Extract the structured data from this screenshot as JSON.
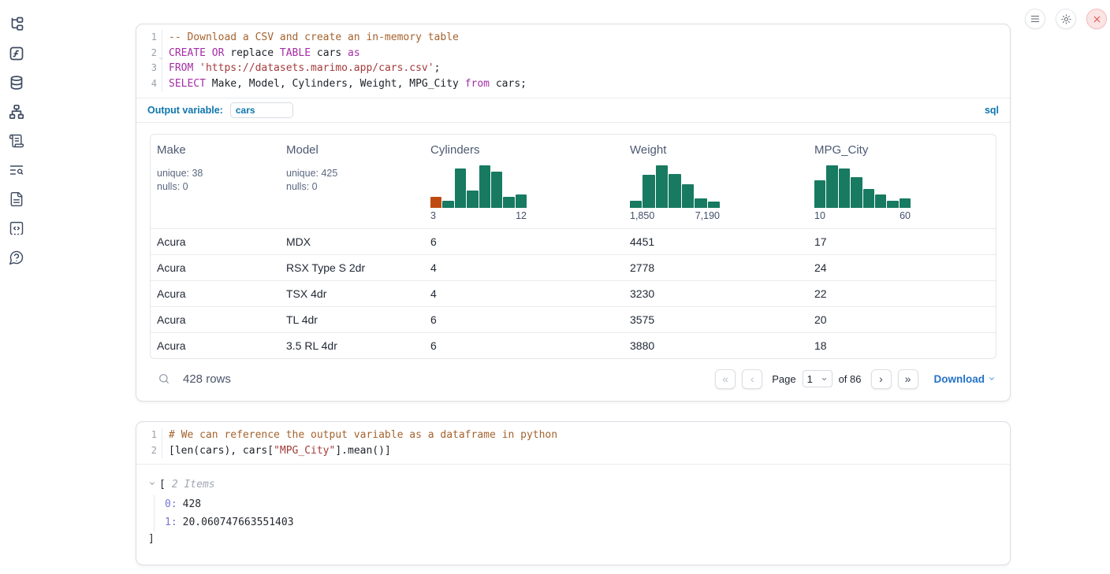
{
  "sidebar": {
    "icons": [
      "file-tree-icon",
      "function-square-icon",
      "database-icon",
      "dependency-graph-icon",
      "scroll-script-icon",
      "text-search-icon",
      "document-icon",
      "snippets-code-icon",
      "help-question-icon"
    ]
  },
  "topbar": {
    "buttons": [
      "menu-icon",
      "settings-gear-icon",
      "shutdown-close-icon"
    ]
  },
  "sql_cell": {
    "line_numbers": [
      "1",
      "2",
      "3",
      "4"
    ],
    "code": [
      [
        [
          "cm",
          "-- Download a CSV and create an in-memory table"
        ]
      ],
      [
        [
          "kw",
          "CREATE OR"
        ],
        [
          "pl",
          " replace "
        ],
        [
          "kw",
          "TABLE"
        ],
        [
          "pl",
          " cars "
        ],
        [
          "kw",
          "as"
        ]
      ],
      [
        [
          "kw",
          "FROM"
        ],
        [
          "pl",
          " "
        ],
        [
          "str",
          "'https://datasets.marimo.app/cars.csv'"
        ],
        [
          "pl",
          ";"
        ]
      ],
      [
        [
          "kw",
          "SELECT"
        ],
        [
          "pl",
          " Make, Model, Cylinders, Weight, MPG_City "
        ],
        [
          "kw",
          "from"
        ],
        [
          "pl",
          " cars;"
        ]
      ]
    ],
    "output_variable": {
      "label": "Output variable:",
      "value": "cars",
      "language": "sql"
    },
    "table": {
      "columns": [
        {
          "label": "Make",
          "stats": {
            "unique": "unique: 38",
            "nulls": "nulls: 0"
          }
        },
        {
          "label": "Model",
          "stats": {
            "unique": "unique: 425",
            "nulls": "nulls: 0"
          }
        },
        {
          "label": "Cylinders",
          "hist": {
            "min_label": "3",
            "max_label": "12",
            "color": "#177a61",
            "bars": [
              {
                "h": 0.26,
                "c": "#c04b11"
              },
              {
                "h": 0.16
              },
              {
                "h": 0.92
              },
              {
                "h": 0.4
              },
              {
                "h": 1.0
              },
              {
                "h": 0.85
              },
              {
                "h": 0.26
              },
              {
                "h": 0.31
              }
            ]
          }
        },
        {
          "label": "Weight",
          "hist": {
            "min_label": "1,850",
            "max_label": "7,190",
            "color": "#177a61",
            "bars": [
              {
                "h": 0.16
              },
              {
                "h": 0.78
              },
              {
                "h": 1.0
              },
              {
                "h": 0.8
              },
              {
                "h": 0.55
              },
              {
                "h": 0.22
              },
              {
                "h": 0.15
              }
            ]
          }
        },
        {
          "label": "MPG_City",
          "hist": {
            "min_label": "10",
            "max_label": "60",
            "color": "#177a61",
            "bars": [
              {
                "h": 0.65
              },
              {
                "h": 1.0
              },
              {
                "h": 0.93
              },
              {
                "h": 0.72
              },
              {
                "h": 0.44
              },
              {
                "h": 0.32
              },
              {
                "h": 0.16
              },
              {
                "h": 0.22
              }
            ]
          }
        }
      ],
      "rows": [
        [
          "Acura",
          "MDX",
          "6",
          "4451",
          "17"
        ],
        [
          "Acura",
          "RSX Type S 2dr",
          "4",
          "2778",
          "24"
        ],
        [
          "Acura",
          "TSX 4dr",
          "4",
          "3230",
          "22"
        ],
        [
          "Acura",
          "TL 4dr",
          "6",
          "3575",
          "20"
        ],
        [
          "Acura",
          "3.5 RL 4dr",
          "6",
          "3880",
          "18"
        ]
      ],
      "footer": {
        "row_count": "428 rows",
        "first": "«",
        "prev": "‹",
        "next": "›",
        "last": "»",
        "page_label": "Page",
        "page_value": "1",
        "of_label": "of 86",
        "download_label": "Download"
      }
    }
  },
  "python_cell": {
    "line_numbers": [
      "1",
      "2"
    ],
    "code": [
      [
        [
          "cm",
          "# We can reference the output variable as a dataframe in python"
        ]
      ],
      [
        [
          "pl",
          "[len(cars), cars["
        ],
        [
          "str",
          "\"MPG_City\""
        ],
        [
          "pl",
          "].mean()]"
        ]
      ]
    ],
    "output": {
      "bracket_open": "[",
      "items_label": "2 Items",
      "entries": [
        {
          "key": "0:",
          "value": "428"
        },
        {
          "key": "1:",
          "value": "20.060747663551403"
        }
      ],
      "bracket_close": "]"
    }
  }
}
